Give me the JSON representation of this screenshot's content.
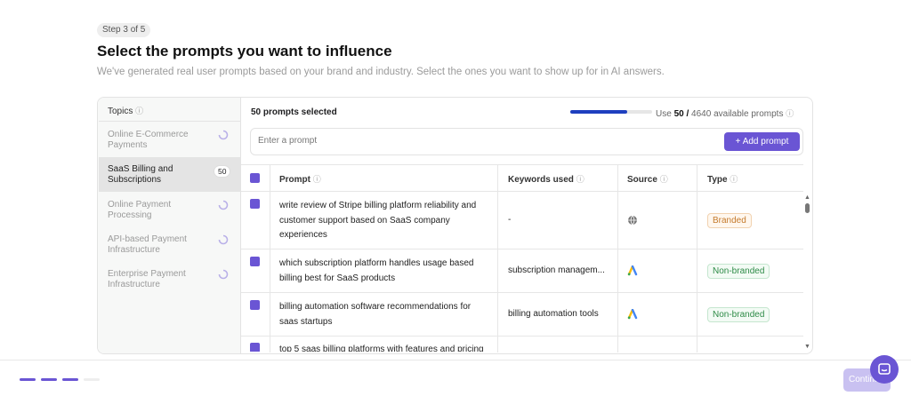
{
  "step": "Step 3 of 5",
  "title": "Select the prompts you want to influence",
  "subtitle": "We've generated real user prompts based on your brand and industry. Select the ones you want to show up for in AI answers.",
  "topics": {
    "header": "Topics",
    "items": [
      {
        "label": "Online E-Commerce Payments"
      },
      {
        "label": "SaaS Billing and Subscriptions",
        "count": "50"
      },
      {
        "label": "Online Payment Processing"
      },
      {
        "label": "API-based Payment Infrastructure"
      },
      {
        "label": "Enterprise Payment Infrastructure"
      }
    ]
  },
  "summary": {
    "selected": "50 prompts selected",
    "use": "Use",
    "used": "50 /",
    "available": "4640 available prompts"
  },
  "input": {
    "placeholder": "Enter a prompt",
    "button": "Add prompt"
  },
  "table": {
    "columns": [
      "Prompt",
      "Keywords used",
      "Source",
      "Type"
    ],
    "rows": [
      {
        "prompt": "write review of Stripe billing platform reliability and customer support based on SaaS company experiences",
        "keywords": "-",
        "type": "Branded"
      },
      {
        "prompt": "which subscription platform handles usage based billing best for SaaS products",
        "keywords": "subscription managem...",
        "type": "Non-branded"
      },
      {
        "prompt": "billing automation software recommendations for saas startups",
        "keywords": "billing automation tools",
        "type": "Non-branded"
      },
      {
        "prompt": "top 5 saas billing platforms with features and pricing"
      }
    ]
  },
  "footer": {
    "continue": "Continue"
  }
}
